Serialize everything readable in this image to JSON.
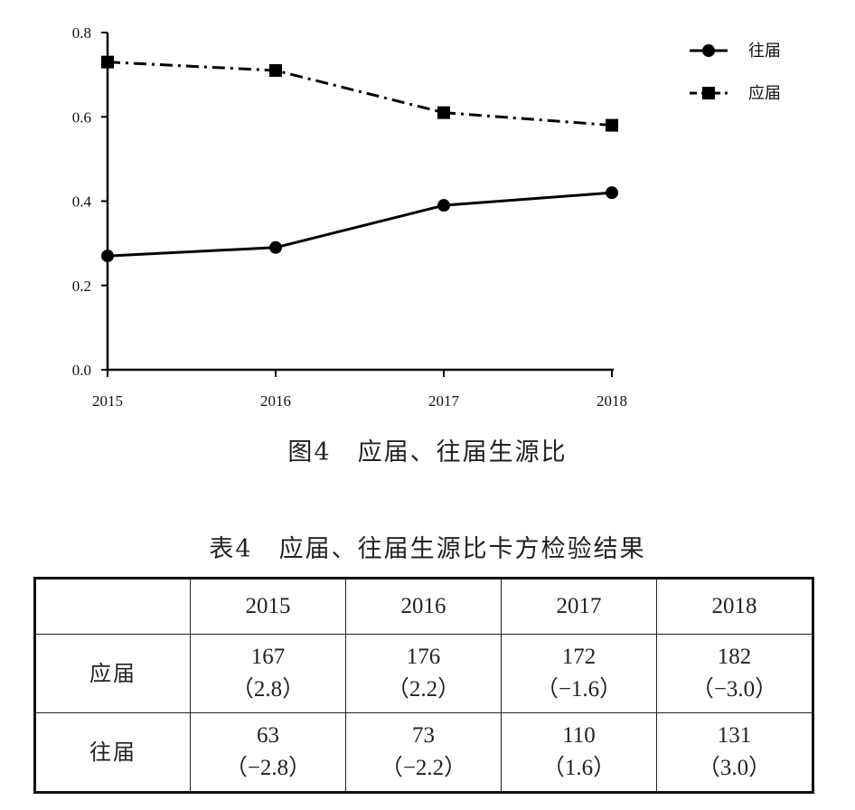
{
  "chart_data": {
    "type": "line",
    "categories": [
      "2015",
      "2016",
      "2017",
      "2018"
    ],
    "series": [
      {
        "name": "往届",
        "values": [
          0.27,
          0.29,
          0.39,
          0.42
        ],
        "marker": "circle",
        "line_style": "solid",
        "color": "#000000"
      },
      {
        "name": "应届",
        "values": [
          0.73,
          0.71,
          0.61,
          0.58
        ],
        "marker": "square",
        "line_style": "dash-dot",
        "color": "#000000"
      }
    ],
    "ylim": [
      0,
      0.8
    ],
    "yticks": [
      "0.0",
      "0.2",
      "0.4",
      "0.6",
      "0.8"
    ],
    "xlabel": "",
    "ylabel": "",
    "grid": false,
    "legend_position": "top-right"
  },
  "figure_caption": "图4　应届、往届生源比",
  "table": {
    "caption": "表4　应届、往届生源比卡方检验结果",
    "header": [
      "",
      "2015",
      "2016",
      "2017",
      "2018"
    ],
    "rows": [
      {
        "label": "应届",
        "cells": [
          {
            "count": "167",
            "residual": "（2.8）"
          },
          {
            "count": "176",
            "residual": "（2.2）"
          },
          {
            "count": "172",
            "residual": "（−1.6）"
          },
          {
            "count": "182",
            "residual": "（−3.0）"
          }
        ]
      },
      {
        "label": "往届",
        "cells": [
          {
            "count": "63",
            "residual": "（−2.8）"
          },
          {
            "count": "73",
            "residual": "（−2.2）"
          },
          {
            "count": "110",
            "residual": "（1.6）"
          },
          {
            "count": "131",
            "residual": "（3.0）"
          }
        ]
      }
    ]
  }
}
